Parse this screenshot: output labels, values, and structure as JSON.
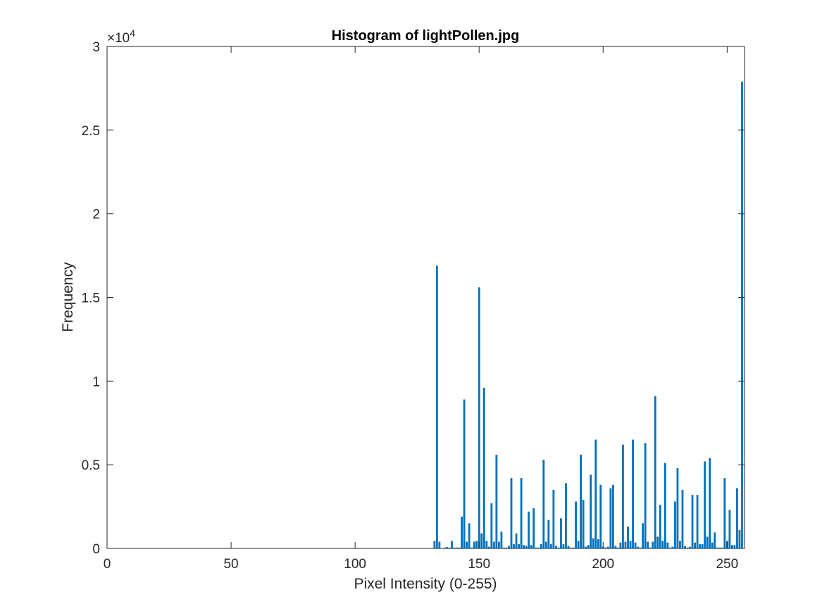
{
  "chart_data": {
    "type": "bar",
    "title": "Histogram of lightPollen.jpg",
    "xlabel": "Pixel Intensity (0-255)",
    "ylabel": "Frequency",
    "y_exponent_base": "×10",
    "y_exponent_power": "4",
    "xlim": [
      0,
      257
    ],
    "ylim": [
      0,
      30000
    ],
    "xticks": [
      0,
      50,
      100,
      150,
      200,
      250
    ],
    "xtick_labels": [
      "0",
      "50",
      "100",
      "150",
      "200",
      "250"
    ],
    "yticks": [
      0,
      5000,
      10000,
      15000,
      20000,
      25000,
      30000
    ],
    "ytick_labels": [
      "0",
      "0.5",
      "1",
      "1.5",
      "2",
      "2.5",
      "3"
    ],
    "grid": false,
    "bar_color": "#0072BD",
    "series": [
      {
        "x": [
          132,
          133,
          134,
          136,
          137,
          138,
          139,
          140,
          141,
          142,
          143,
          144,
          145,
          146,
          147,
          148,
          149,
          150,
          151,
          152,
          153,
          154,
          155,
          156,
          157,
          158,
          159,
          160,
          161,
          162,
          163,
          164,
          165,
          166,
          167,
          168,
          169,
          170,
          171,
          172,
          173,
          174,
          175,
          176,
          177,
          178,
          179,
          180,
          181,
          182,
          183,
          184,
          185,
          186,
          187,
          188,
          189,
          190,
          191,
          192,
          193,
          194,
          195,
          196,
          197,
          198,
          199,
          200,
          201,
          202,
          203,
          204,
          205,
          206,
          207,
          208,
          209,
          210,
          211,
          212,
          213,
          214,
          215,
          216,
          217,
          218,
          219,
          220,
          221,
          222,
          223,
          224,
          225,
          226,
          227,
          228,
          229,
          230,
          231,
          232,
          233,
          234,
          235,
          236,
          237,
          238,
          239,
          240,
          241,
          242,
          243,
          244,
          245,
          246,
          247,
          248,
          249,
          250,
          251,
          252,
          253,
          254,
          255,
          256
        ],
        "values": [
          450,
          16900,
          400,
          50,
          80,
          50,
          450,
          50,
          50,
          50,
          1900,
          8900,
          400,
          1500,
          50,
          400,
          450,
          15600,
          900,
          9600,
          450,
          100,
          2700,
          400,
          5600,
          400,
          1000,
          50,
          50,
          150,
          4200,
          250,
          900,
          250,
          4200,
          200,
          150,
          2200,
          200,
          2400,
          50,
          50,
          250,
          5300,
          400,
          1700,
          250,
          3500,
          150,
          50,
          1800,
          250,
          3900,
          150,
          50,
          50,
          2800,
          450,
          5600,
          2900,
          100,
          200,
          4400,
          600,
          6500,
          550,
          3800,
          100,
          50,
          100,
          3600,
          3800,
          150,
          50,
          350,
          6200,
          400,
          1300,
          450,
          6500,
          350,
          100,
          50,
          1500,
          6300,
          400,
          50,
          400,
          9100,
          700,
          2600,
          450,
          5100,
          350,
          50,
          100,
          2800,
          4800,
          450,
          3500,
          150,
          50,
          100,
          3200,
          350,
          3200,
          250,
          250,
          5200,
          700,
          5400,
          350,
          950,
          50,
          50,
          50,
          4200,
          450,
          2300,
          200,
          200,
          3600,
          1100,
          27900
        ]
      }
    ]
  }
}
